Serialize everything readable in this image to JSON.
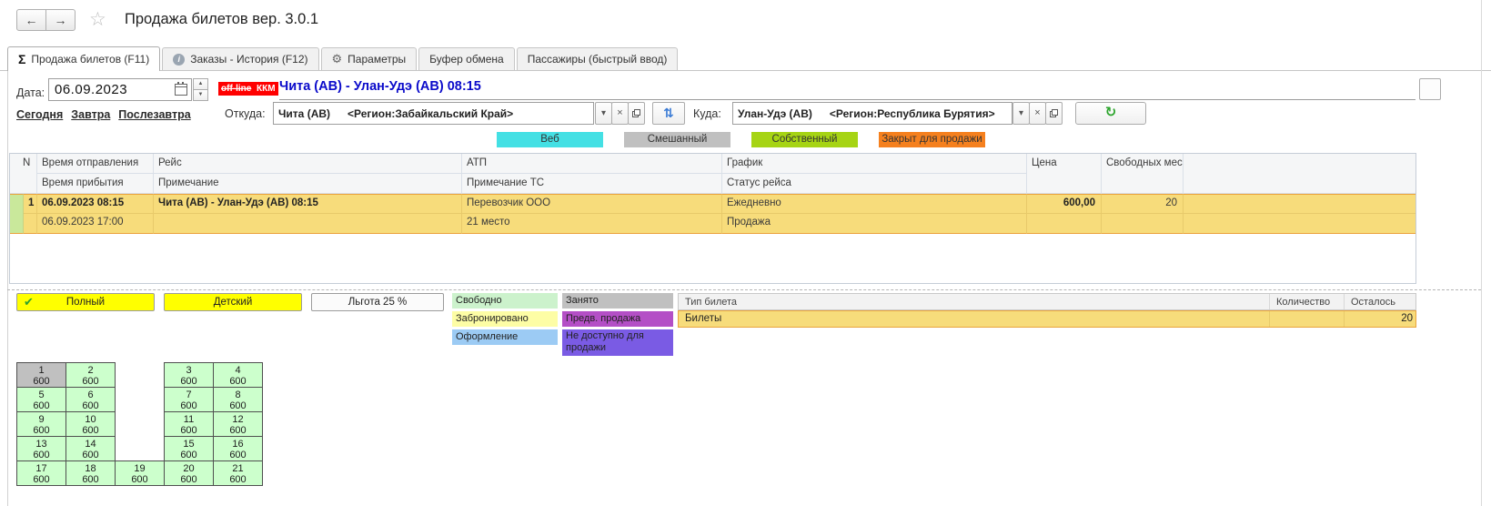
{
  "icons": {
    "back": "←",
    "forward": "→",
    "star": "☆",
    "sigma": "Σ",
    "info": "i",
    "gear": "⚙",
    "dropdown": "▾",
    "clear": "×",
    "spin_up": "▲",
    "spin_down": "▼",
    "swap": "⇅",
    "refresh": "↻",
    "check": "✔"
  },
  "header": {
    "title": "Продажа билетов вер. 3.0.1"
  },
  "tabs": [
    {
      "label": "Продажа билетов (F11)",
      "active": true
    },
    {
      "label": "Заказы - История (F12)",
      "active": false
    },
    {
      "label": "Параметры",
      "active": false
    },
    {
      "label": "Буфер обмена",
      "active": false
    },
    {
      "label": "Пассажиры (быстрый ввод)",
      "active": false
    }
  ],
  "filters": {
    "date_label": "Дата:",
    "date_value": "06.09.2023",
    "offline_badge": "off-line",
    "kkm_badge": "ККМ",
    "badge_color": "#FF0000",
    "route_title": "Чита (АВ) - Улан-Удэ (АВ) 08:15",
    "route_title_color": "#0A0ACA",
    "links": [
      "Сегодня",
      "Завтра",
      "Послезавтра"
    ],
    "from_label": "Откуда:",
    "from_value": "Чита (АВ)",
    "from_region": "<Регион:Забайкальский Край>",
    "to_label": "Куда:",
    "to_value": "Улан-Удэ (АВ)",
    "to_region": "<Регион:Республика Бурятия>"
  },
  "status_legend": [
    {
      "label": "Веб",
      "color": "#44E0E4"
    },
    {
      "label": "Смешанный",
      "color": "#C0C0C0"
    },
    {
      "label": "Собственный",
      "color": "#A6D414"
    },
    {
      "label": "Закрыт для продажи",
      "color": "#F5801E"
    }
  ],
  "trips_table": {
    "headers_top": {
      "n": "N",
      "departure": "Время отправления",
      "route": "Рейс",
      "atp": "АТП",
      "schedule": "График",
      "price": "Цена",
      "free_seats": "Свободных мест"
    },
    "headers_bottom": {
      "arrival": "Время прибытия",
      "note": "Примечание",
      "atp_note": "Примечание ТС",
      "status": "Статус рейса"
    },
    "selection_color": "#F7DC7B",
    "rows": [
      {
        "num": "1",
        "departure": "06.09.2023 08:15",
        "arrival": "06.09.2023 17:00",
        "route": "Чита (АВ) - Улан-Удэ (АВ) 08:15",
        "note": "",
        "carrier": "Перевозчик ООО",
        "vehicle_note": "21 место",
        "schedule": "Ежедневно",
        "status": "Продажа",
        "price": "600,00",
        "free_seats": "20"
      }
    ]
  },
  "ticket_buttons": [
    {
      "label": "Полный",
      "selected": true
    },
    {
      "label": "Детский",
      "selected": false
    },
    {
      "label": "Льгота 25 %",
      "selected": false
    }
  ],
  "seat_legend_left": [
    {
      "label": "Свободно",
      "color": "#CCF2CC"
    },
    {
      "label": "Забронировано",
      "color": "#FDFDA5"
    },
    {
      "label": "Оформление",
      "color": "#9CCBF4"
    }
  ],
  "seat_legend_right": [
    {
      "label": "Занято",
      "color": "#C0C0C0"
    },
    {
      "label": "Предв. продажа",
      "color": "#B44FC6"
    },
    {
      "label": "Не доступно для продажи",
      "color": "#7A5BE4"
    }
  ],
  "ticket_types": {
    "headers": {
      "type": "Тип билета",
      "quantity": "Количество",
      "remaining": "Осталось"
    },
    "rows": [
      {
        "type": "Билеты",
        "quantity": "",
        "remaining": "20"
      }
    ]
  },
  "seat_map": {
    "price": "600",
    "free_color": "#CCFFCC",
    "occupied_color": "#C0C0C0",
    "occupied": [
      1
    ],
    "rows": [
      [
        1,
        2,
        null,
        3,
        4
      ],
      [
        5,
        6,
        null,
        7,
        8
      ],
      [
        9,
        10,
        null,
        11,
        12
      ],
      [
        13,
        14,
        null,
        15,
        16
      ],
      [
        17,
        18,
        19,
        20,
        21
      ]
    ]
  }
}
